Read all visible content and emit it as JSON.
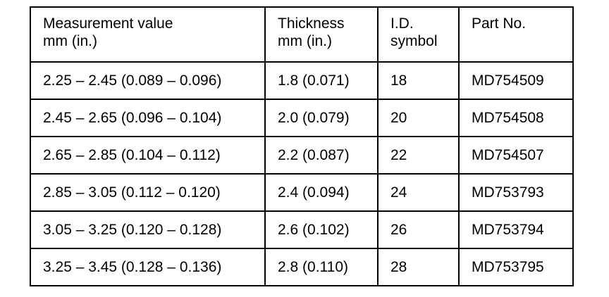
{
  "table": {
    "header": [
      [
        "Measurement value",
        "mm (in.)"
      ],
      [
        "Thickness",
        "mm (in.)"
      ],
      [
        "I.D.",
        "symbol"
      ],
      [
        "Part No."
      ]
    ],
    "rows": [
      [
        "2.25 – 2.45 (0.089 – 0.096)",
        "1.8 (0.071)",
        "18",
        "MD754509"
      ],
      [
        "2.45 – 2.65 (0.096 – 0.104)",
        "2.0 (0.079)",
        "20",
        "MD754508"
      ],
      [
        "2.65 – 2.85 (0.104 – 0.112)",
        "2.2 (0.087)",
        "22",
        "MD754507"
      ],
      [
        "2.85 – 3.05 (0.112 – 0.120)",
        "2.4 (0.094)",
        "24",
        "MD753793"
      ],
      [
        "3.05 – 3.25 (0.120 – 0.128)",
        "2.6 (0.102)",
        "26",
        "MD753794"
      ],
      [
        "3.25 – 3.45 (0.128 – 0.136)",
        "2.8 (0.110)",
        "28",
        "MD753795"
      ]
    ]
  }
}
